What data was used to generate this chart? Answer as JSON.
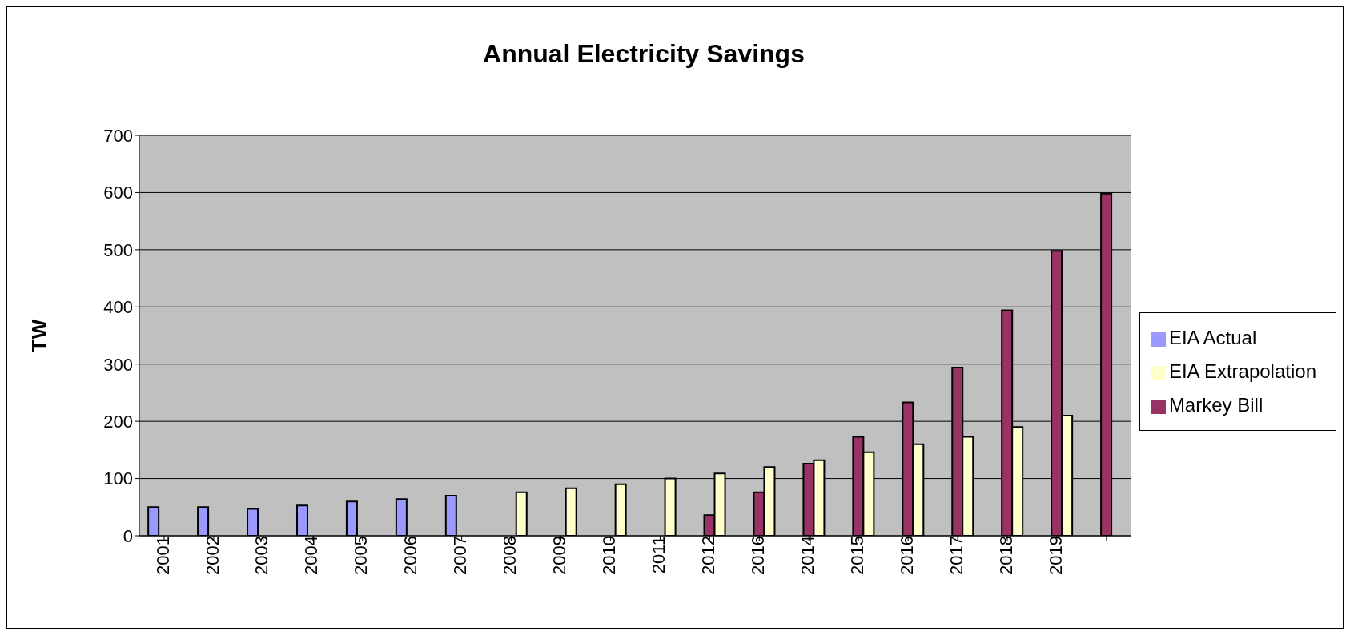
{
  "chart_data": {
    "type": "bar",
    "title": "Annual Electricity Savings",
    "ylabel": "TW",
    "categories": [
      "2001",
      "2002",
      "2003",
      "2004",
      "2005",
      "2006",
      "2007",
      "2008",
      "2009",
      "2010",
      "2011",
      "2012",
      "2016",
      "2014",
      "2015",
      "2016",
      "2017",
      "2018",
      "2019",
      null
    ],
    "series": [
      {
        "name": "EIA Actual",
        "color": "#9999ff",
        "values": [
          50,
          50,
          47,
          53,
          60,
          64,
          70,
          null,
          null,
          null,
          null,
          null,
          null,
          null,
          null,
          null,
          null,
          null,
          null,
          null
        ]
      },
      {
        "name": "Markey Bill",
        "color": "#993366",
        "values": [
          null,
          null,
          null,
          null,
          null,
          null,
          null,
          null,
          null,
          null,
          null,
          36,
          76,
          126,
          173,
          233,
          294,
          394,
          498,
          598
        ]
      },
      {
        "name": "EIA Extrapolation",
        "color": "#ffffcc",
        "values": [
          null,
          null,
          null,
          null,
          null,
          null,
          null,
          76,
          83,
          90,
          100,
          109,
          120,
          132,
          146,
          160,
          173,
          190,
          210,
          null
        ]
      }
    ],
    "ylim": [
      0,
      700
    ],
    "yticks": [
      0,
      100,
      200,
      300,
      400,
      500,
      600,
      700
    ],
    "grid": "y",
    "legend": "right"
  }
}
